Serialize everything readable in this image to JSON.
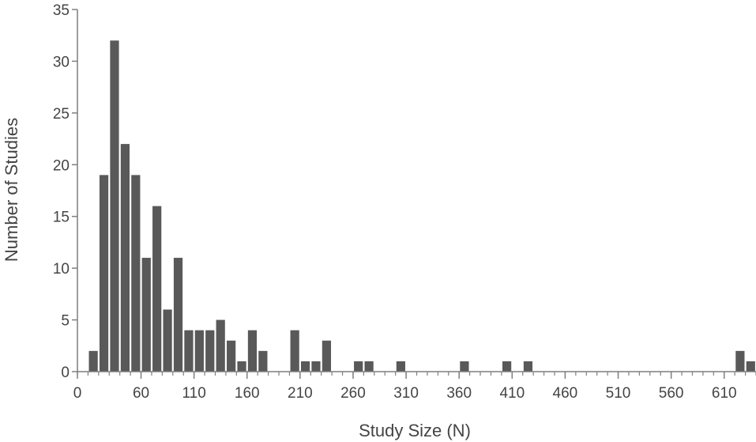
{
  "chart_data": {
    "type": "bar",
    "title": "",
    "xlabel": "Study Size (N)",
    "ylabel": "Number of Studies",
    "xlim": [
      0,
      640
    ],
    "ylim": [
      0,
      35
    ],
    "x_tick_labels": [
      "0",
      "60",
      "110",
      "160",
      "210",
      "260",
      "310",
      "360",
      "410",
      "460",
      "510",
      "560",
      "610"
    ],
    "y_tick_labels": [
      "0",
      "5",
      "10",
      "15",
      "20",
      "25",
      "30",
      "35"
    ],
    "bin_width": 10,
    "grid": false,
    "legend": "none",
    "bar_color": "#595959",
    "axis_color": "#7f7f7f",
    "bins_start": [
      10,
      20,
      30,
      40,
      50,
      60,
      70,
      80,
      90,
      100,
      110,
      120,
      130,
      140,
      150,
      160,
      170,
      180,
      190,
      200,
      210,
      220,
      230,
      240,
      250,
      260,
      270,
      280,
      290,
      300,
      310,
      320,
      330,
      340,
      350,
      360,
      370,
      380,
      390,
      400,
      410,
      420,
      430,
      440,
      450,
      460,
      470,
      480,
      490,
      500,
      510,
      520,
      530,
      540,
      550,
      560,
      570,
      580,
      590,
      600,
      610,
      620,
      630
    ],
    "values": [
      2,
      19,
      32,
      22,
      19,
      11,
      16,
      6,
      11,
      4,
      4,
      4,
      5,
      3,
      1,
      4,
      2,
      0,
      0,
      4,
      1,
      1,
      3,
      0,
      0,
      1,
      1,
      0,
      0,
      1,
      0,
      0,
      0,
      0,
      0,
      1,
      0,
      0,
      0,
      1,
      0,
      1,
      0,
      0,
      0,
      0,
      0,
      0,
      0,
      0,
      0,
      0,
      0,
      0,
      0,
      0,
      0,
      0,
      0,
      0,
      0,
      2,
      1
    ]
  }
}
